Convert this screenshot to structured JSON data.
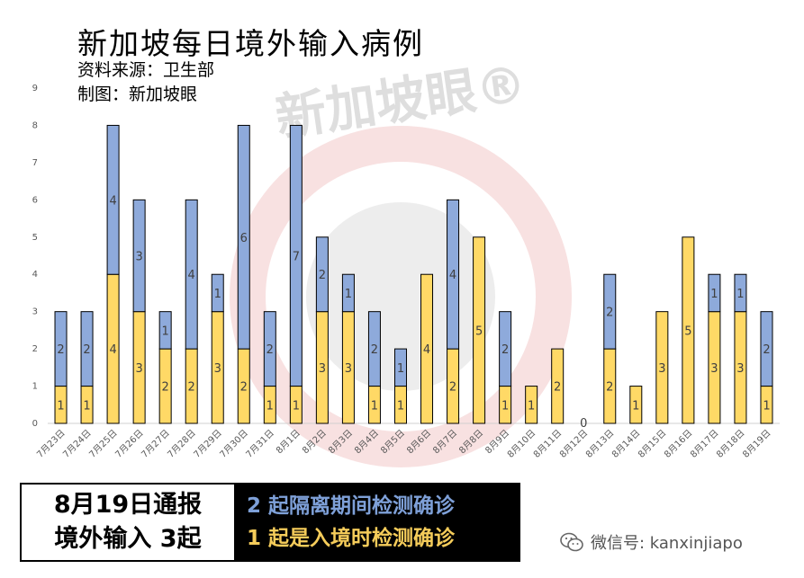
{
  "header": {
    "title": "新加坡每日境外输入病例",
    "source": "资料来源：卫生部",
    "credit": "制图：新加坡眼"
  },
  "watermark": {
    "text": "新加坡眼®"
  },
  "chart_data": {
    "type": "bar",
    "stacked": true,
    "categories": [
      "7月23日",
      "7月24日",
      "7月25日",
      "7月26日",
      "7月27日",
      "7月28日",
      "7月29日",
      "7月30日",
      "7月31日",
      "8月1日",
      "8月2日",
      "8月3日",
      "8月4日",
      "8月5日",
      "8月6日",
      "8月7日",
      "8月8日",
      "8月9日",
      "8月10日",
      "8月11日",
      "8月12日",
      "8月13日",
      "8月14日",
      "8月15日",
      "8月16日",
      "8月17日",
      "8月18日",
      "8月19日"
    ],
    "series": [
      {
        "color": "#ffd966",
        "values": [
          1,
          1,
          4,
          3,
          2,
          2,
          3,
          2,
          1,
          1,
          3,
          3,
          1,
          1,
          4,
          2,
          5,
          1,
          1,
          2,
          0,
          2,
          1,
          3,
          5,
          3,
          3,
          1
        ]
      },
      {
        "color": "#8eaadb",
        "values": [
          2,
          2,
          4,
          3,
          1,
          4,
          1,
          6,
          2,
          7,
          2,
          1,
          2,
          1,
          0,
          4,
          0,
          2,
          0,
          0,
          0,
          2,
          0,
          0,
          0,
          1,
          1,
          2
        ]
      }
    ],
    "yticks": [
      "0",
      "1",
      "2",
      "3",
      "4",
      "5",
      "6",
      "7",
      "8",
      "9"
    ],
    "ylim": [
      0,
      9
    ],
    "grid": false
  },
  "banner": {
    "left_line1": "8月19日通报",
    "left_line2": "境外输入 3起",
    "right_line1": "2 起隔离期间检测确诊",
    "right_line2": "1 起是入境时检测确诊"
  },
  "footer": {
    "wechat_label": "微信号: kanxinjiapo"
  },
  "colors": {
    "yellow": "#ffd966",
    "blue": "#8eaadb",
    "watermark_red": "#e8b0b0",
    "watermark_gray": "#bfbfbf"
  }
}
